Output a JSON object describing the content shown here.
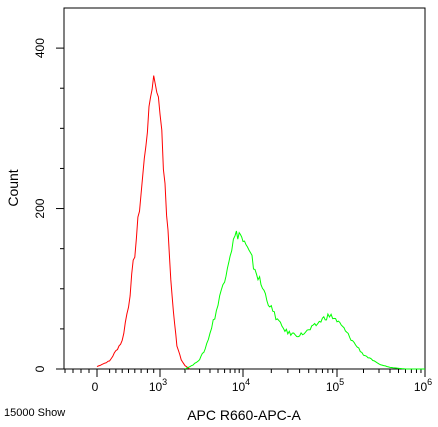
{
  "chart_data": {
    "type": "line",
    "title": "",
    "xlabel": "APC R660-APC-A",
    "ylabel": "Count",
    "x_scale": "logicle",
    "x_ticks": [
      {
        "value": 0,
        "label": "0"
      },
      {
        "value": 1000,
        "label": "10",
        "exp": "3"
      },
      {
        "value": 10000,
        "label": "10",
        "exp": "4"
      },
      {
        "value": 100000,
        "label": "10",
        "exp": "5"
      },
      {
        "value": 1000000,
        "label": "10",
        "exp": "6"
      }
    ],
    "y_ticks": [
      {
        "value": 0,
        "label": "0"
      },
      {
        "value": 200,
        "label": "200"
      },
      {
        "value": 400,
        "label": "400"
      }
    ],
    "ylim": [
      0,
      450
    ],
    "grid": false,
    "series": [
      {
        "color": "#ff0000",
        "x": [
          0,
          200,
          400,
          500,
          600,
          700,
          800,
          850,
          900,
          950,
          1000,
          1050,
          1100,
          1200,
          1300,
          1400,
          1500,
          1600,
          1800,
          2000,
          2300
        ],
        "y": [
          3,
          10,
          35,
          80,
          145,
          220,
          300,
          340,
          365,
          350,
          320,
          300,
          255,
          195,
          140,
          90,
          55,
          30,
          12,
          4,
          0
        ]
      },
      {
        "color": "#00ff00",
        "x": [
          2000,
          2500,
          3000,
          3500,
          4000,
          5000,
          6000,
          7000,
          8000,
          9000,
          10000,
          12000,
          15000,
          20000,
          25000,
          30000,
          40000,
          50000,
          60000,
          70000,
          80000,
          90000,
          100000,
          120000,
          150000,
          200000,
          300000,
          400000,
          600000,
          1000000
        ],
        "y": [
          0,
          5,
          12,
          25,
          45,
          80,
          115,
          145,
          165,
          170,
          160,
          140,
          110,
          75,
          55,
          45,
          42,
          48,
          55,
          62,
          66,
          65,
          60,
          50,
          35,
          18,
          6,
          2,
          0,
          0
        ]
      }
    ]
  },
  "footnote": "15000 Show"
}
